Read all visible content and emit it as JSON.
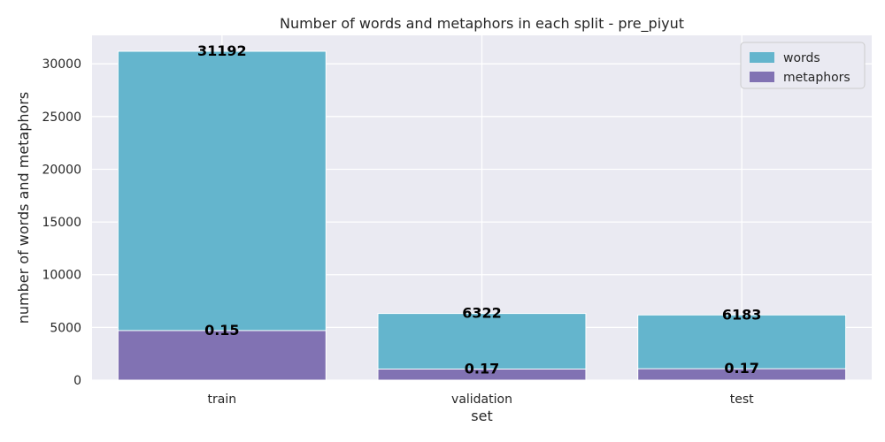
{
  "chart_data": {
    "type": "bar",
    "title": "Number of words and metaphors in each split - pre_piyut",
    "xlabel": "set",
    "ylabel": "number of words and metaphors",
    "categories": [
      "train",
      "validation",
      "test"
    ],
    "series": [
      {
        "name": "words",
        "values": [
          31192,
          6322,
          6183
        ],
        "color": "#64b5cd"
      },
      {
        "name": "metaphors",
        "values": [
          4700,
          1050,
          1080
        ],
        "color": "#8172b3"
      }
    ],
    "data_labels": {
      "words": [
        "31192",
        "6322",
        "6183"
      ],
      "metaphors": [
        "0.15",
        "0.17",
        "0.17"
      ]
    },
    "ylim": [
      0,
      32700
    ],
    "yticks": [
      0,
      5000,
      10000,
      15000,
      20000,
      25000,
      30000
    ],
    "yticklabels": [
      "0",
      "5000",
      "10000",
      "15000",
      "20000",
      "25000",
      "30000"
    ],
    "grid": true,
    "legend": "top-right",
    "background": "#eaeaf2"
  }
}
